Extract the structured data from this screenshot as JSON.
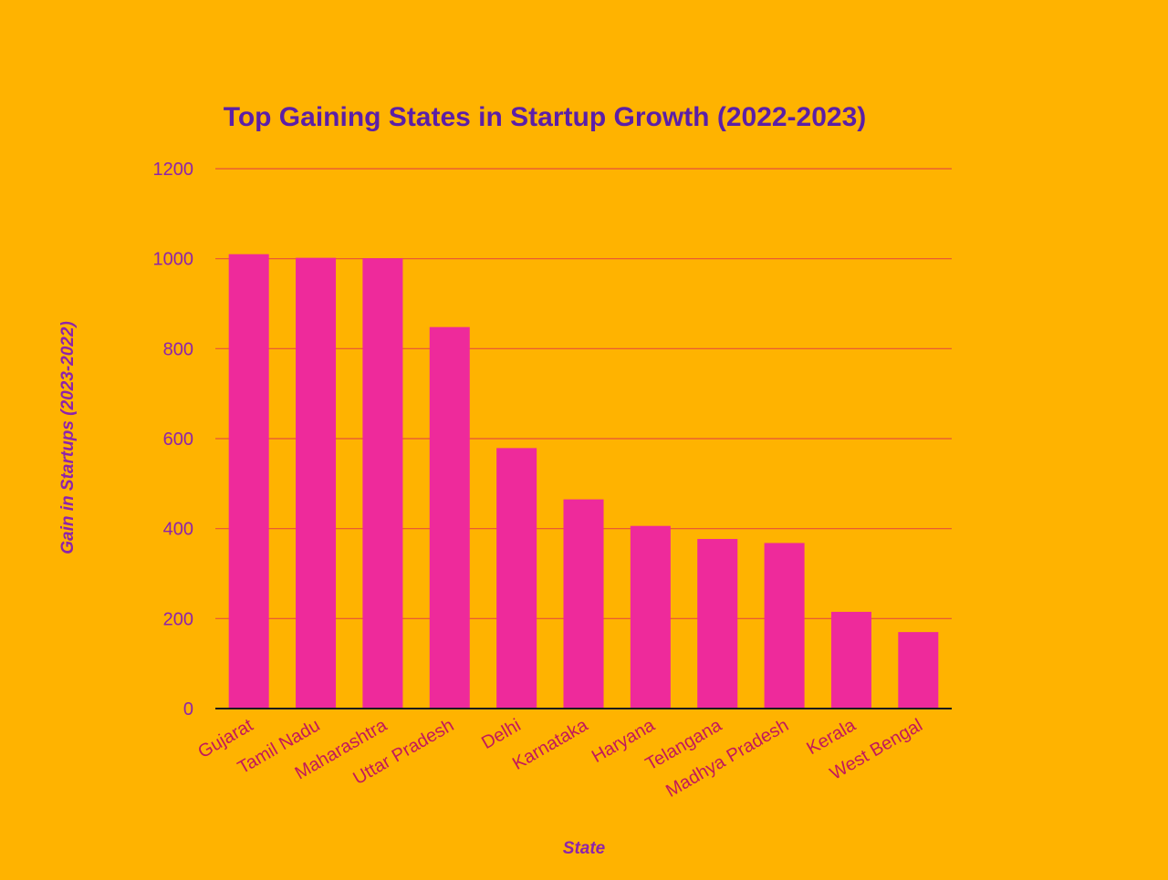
{
  "chart_data": {
    "type": "bar",
    "title": "Top Gaining States in Startup Growth (2022-2023)",
    "xlabel": "State",
    "ylabel": "Gain in Startups (2023-2022)",
    "ylim": [
      0,
      1200
    ],
    "yticks": [
      0,
      200,
      400,
      600,
      800,
      1000,
      1200
    ],
    "ytick_labels": [
      "0",
      "200",
      "400",
      "600",
      "800",
      "1000",
      "1200"
    ],
    "grid": true,
    "categories": [
      "Gujarat",
      "Tamil Nadu",
      "Maharashtra",
      "Uttar Pradesh",
      "Delhi",
      "Karnataka",
      "Haryana",
      "Telangana",
      "Madhya Pradesh",
      "Kerala",
      "West Bengal"
    ],
    "values": [
      1010,
      1002,
      1001,
      848,
      579,
      465,
      406,
      377,
      368,
      215,
      170
    ]
  },
  "colors": {
    "background": "#FFB300",
    "bar": "#EE2A9B",
    "title": "#5B1FA8",
    "axis_text": "#8E24AA",
    "tick_text": "#C2185B",
    "grid": "#E8503A",
    "axis_line": "#1A1A1A"
  }
}
